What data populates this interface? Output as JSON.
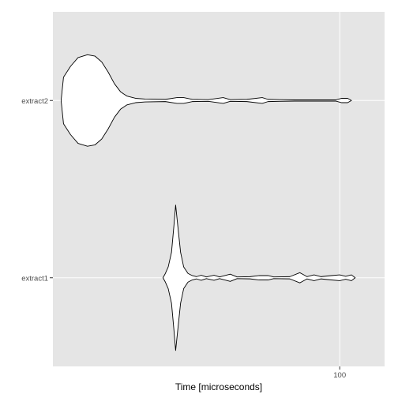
{
  "chart_data": {
    "type": "violin",
    "orientation": "horizontal",
    "title": "",
    "xlabel": "Time [microseconds]",
    "ylabel": "",
    "x_scale": "log",
    "x_range": [
      24,
      125
    ],
    "x_ticks": [
      100
    ],
    "x_tick_labels": [
      "100"
    ],
    "grid": true,
    "legend": "none",
    "categories": [
      "extract2",
      "extract1"
    ],
    "series": [
      {
        "name": "extract2",
        "profile": [
          [
            25.0,
            0.0
          ],
          [
            25.3,
            0.32
          ],
          [
            26.2,
            0.47
          ],
          [
            27.2,
            0.59
          ],
          [
            28.5,
            0.63
          ],
          [
            29.6,
            0.61
          ],
          [
            30.6,
            0.53
          ],
          [
            31.6,
            0.39
          ],
          [
            32.6,
            0.23
          ],
          [
            33.6,
            0.12
          ],
          [
            34.7,
            0.06
          ],
          [
            36.2,
            0.03
          ],
          [
            38.0,
            0.02
          ],
          [
            42.0,
            0.015
          ],
          [
            44.5,
            0.04
          ],
          [
            46.0,
            0.04
          ],
          [
            48.0,
            0.015
          ],
          [
            52.0,
            0.012
          ],
          [
            56.0,
            0.04
          ],
          [
            58.0,
            0.012
          ],
          [
            63.0,
            0.015
          ],
          [
            68.0,
            0.04
          ],
          [
            70.0,
            0.015
          ],
          [
            74.0,
            0.012
          ],
          [
            80.0,
            0.008
          ],
          [
            90.0,
            0.008
          ],
          [
            98.0,
            0.008
          ],
          [
            101.0,
            0.03
          ],
          [
            104.0,
            0.03
          ],
          [
            106.0,
            0.0
          ]
        ]
      },
      {
        "name": "extract1",
        "profile": [
          [
            41.5,
            0.0
          ],
          [
            42.0,
            0.06
          ],
          [
            42.6,
            0.15
          ],
          [
            43.3,
            0.35
          ],
          [
            43.8,
            0.7
          ],
          [
            44.2,
            1.0
          ],
          [
            44.7,
            0.7
          ],
          [
            45.3,
            0.35
          ],
          [
            46.0,
            0.15
          ],
          [
            47.0,
            0.06
          ],
          [
            48.0,
            0.03
          ],
          [
            49.0,
            0.015
          ],
          [
            50.2,
            0.035
          ],
          [
            51.5,
            0.012
          ],
          [
            53.5,
            0.035
          ],
          [
            55.0,
            0.012
          ],
          [
            58.0,
            0.05
          ],
          [
            60.0,
            0.012
          ],
          [
            64.0,
            0.015
          ],
          [
            67.0,
            0.03
          ],
          [
            70.0,
            0.03
          ],
          [
            72.0,
            0.012
          ],
          [
            78.0,
            0.015
          ],
          [
            82.0,
            0.07
          ],
          [
            85.0,
            0.015
          ],
          [
            88.0,
            0.04
          ],
          [
            91.0,
            0.015
          ],
          [
            96.0,
            0.03
          ],
          [
            100.0,
            0.04
          ],
          [
            103.0,
            0.02
          ],
          [
            106.0,
            0.04
          ],
          [
            108.0,
            0.0
          ]
        ]
      }
    ]
  },
  "colors": {
    "panel": "#e5e5e5",
    "grid": "#ffffff",
    "violin_fill": "#ffffff",
    "violin_stroke": "#000000",
    "tick_text": "#4d4d4d"
  }
}
